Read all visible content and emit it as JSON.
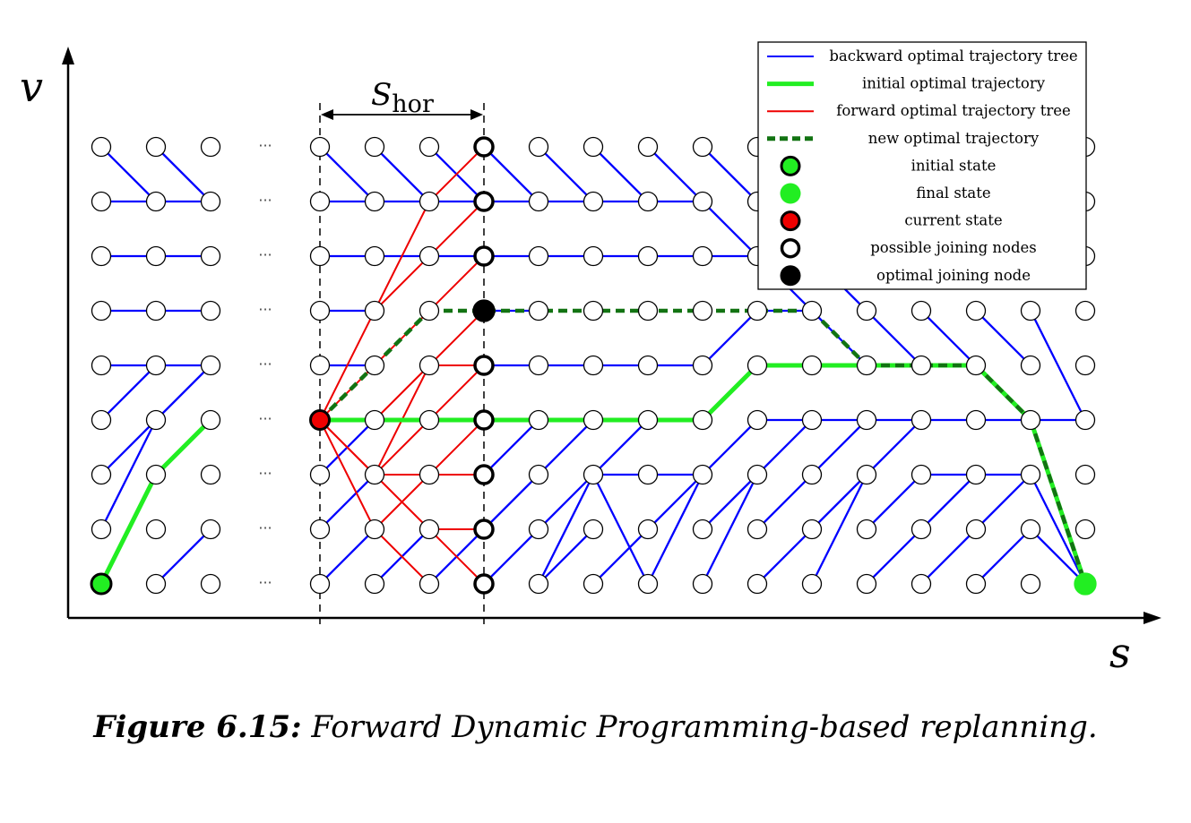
{
  "axes": {
    "y_label": "v",
    "x_label": "s"
  },
  "horizon": {
    "label_main": "S",
    "label_sub": "hor"
  },
  "ellipsis": "···",
  "legend": {
    "items": [
      {
        "key": "backward",
        "label": "backward optimal trajectory tree",
        "marker": "line",
        "color": "#0000ff"
      },
      {
        "key": "initial_traj",
        "label": "initial optimal trajectory",
        "marker": "thick-line",
        "color": "#22ee22"
      },
      {
        "key": "forward",
        "label": "forward optimal trajectory tree",
        "marker": "line",
        "color": "#ee0000"
      },
      {
        "key": "new_traj",
        "label": "new optimal trajectory",
        "marker": "dashed-line",
        "color": "#127312"
      },
      {
        "key": "initial_state",
        "label": "initial state",
        "marker": "circle-green-black-ring"
      },
      {
        "key": "final_state",
        "label": "final state",
        "marker": "circle-green"
      },
      {
        "key": "current_state",
        "label": "current state",
        "marker": "circle-red-black-ring"
      },
      {
        "key": "joining",
        "label": "possible joining nodes",
        "marker": "circle-white-thick"
      },
      {
        "key": "optimal_joining",
        "label": "optimal joining node",
        "marker": "circle-black"
      }
    ]
  },
  "caption": {
    "number": "Figure 6.15:",
    "text": "Forward Dynamic Programming-based replanning."
  },
  "colors": {
    "blue": "#0000ff",
    "green": "#22ee22",
    "red": "#ee0000",
    "darkgreen": "#127312"
  }
}
